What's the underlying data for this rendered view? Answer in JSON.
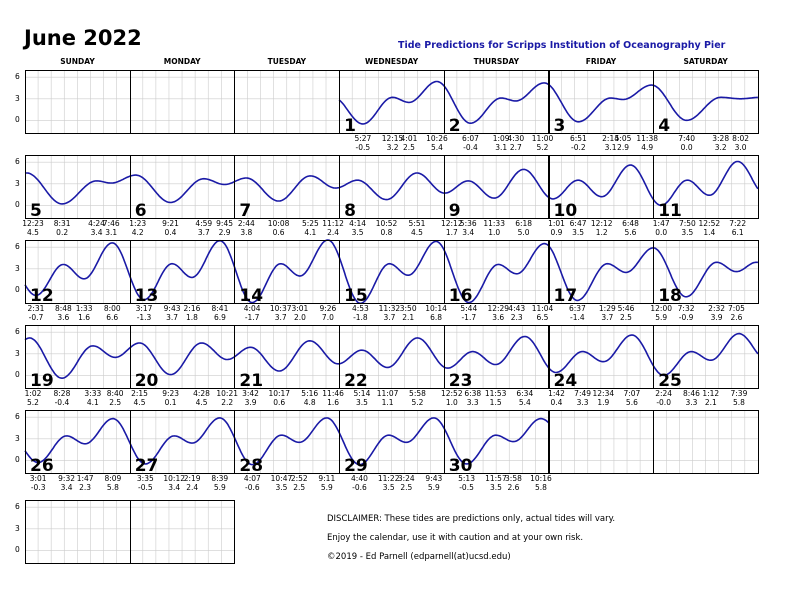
{
  "header": {
    "title": "June 2022",
    "subtitle": "Tide Predictions for Scripps Institution of Oceanography Pier"
  },
  "weekdays": [
    "SUNDAY",
    "MONDAY",
    "TUESDAY",
    "WEDNESDAY",
    "THURSDAY",
    "FRIDAY",
    "SATURDAY"
  ],
  "y_ticks": [
    "6",
    "3",
    "0"
  ],
  "curve_color": "#1a1aa6",
  "weeks": [
    [
      null,
      null,
      null,
      {
        "date": "1",
        "tides": [
          [
            "5:27",
            "-0.5"
          ],
          [
            "12:15",
            "3.2"
          ],
          [
            "4:01",
            "2.5"
          ],
          [
            "10:26",
            "5.4"
          ]
        ]
      },
      {
        "date": "2",
        "tides": [
          [
            "6:07",
            "-0.4"
          ],
          [
            "1:09",
            "3.1"
          ],
          [
            "4:30",
            "2.7"
          ],
          [
            "11:00",
            "5.2"
          ]
        ]
      },
      {
        "date": "3",
        "tides": [
          [
            "6:51",
            "-0.2"
          ],
          [
            "2:14",
            "3.1"
          ],
          [
            "5:05",
            "2.9"
          ],
          [
            "11:38",
            "4.9"
          ]
        ]
      },
      {
        "date": "4",
        "tides": [
          [
            "7:40",
            "0.0"
          ],
          [
            "3:28",
            "3.2"
          ],
          [
            "8:02",
            "3.0"
          ]
        ]
      }
    ],
    [
      {
        "date": "5",
        "tides": [
          [
            "12:23",
            "4.5"
          ],
          [
            "8:31",
            "0.2"
          ],
          [
            "4:24",
            "3.4"
          ],
          [
            "7:46",
            "3.1"
          ]
        ]
      },
      {
        "date": "6",
        "tides": [
          [
            "1:23",
            "4.2"
          ],
          [
            "9:21",
            "0.4"
          ],
          [
            "4:59",
            "3.7"
          ],
          [
            "9:45",
            "2.9"
          ]
        ]
      },
      {
        "date": "7",
        "tides": [
          [
            "2:44",
            "3.8"
          ],
          [
            "10:08",
            "0.6"
          ],
          [
            "5:25",
            "4.1"
          ],
          [
            "11:12",
            "2.4"
          ]
        ]
      },
      {
        "date": "8",
        "tides": [
          [
            "4:14",
            "3.5"
          ],
          [
            "10:52",
            "0.8"
          ],
          [
            "5:51",
            "4.5"
          ]
        ]
      },
      {
        "date": "9",
        "tides": [
          [
            "12:12",
            "1.7"
          ],
          [
            "5:36",
            "3.4"
          ],
          [
            "11:33",
            "1.0"
          ],
          [
            "6:18",
            "5.0"
          ]
        ]
      },
      {
        "date": "10",
        "tides": [
          [
            "1:01",
            "0.9"
          ],
          [
            "6:47",
            "3.5"
          ],
          [
            "12:12",
            "1.2"
          ],
          [
            "6:48",
            "5.6"
          ]
        ]
      },
      {
        "date": "11",
        "tides": [
          [
            "1:47",
            "0.0"
          ],
          [
            "7:50",
            "3.5"
          ],
          [
            "12:52",
            "1.4"
          ],
          [
            "7:22",
            "6.1"
          ]
        ]
      }
    ],
    [
      {
        "date": "12",
        "tides": [
          [
            "2:31",
            "-0.7"
          ],
          [
            "8:48",
            "3.6"
          ],
          [
            "1:33",
            "1.6"
          ],
          [
            "8:00",
            "6.6"
          ]
        ]
      },
      {
        "date": "13",
        "tides": [
          [
            "3:17",
            "-1.3"
          ],
          [
            "9:43",
            "3.7"
          ],
          [
            "2:16",
            "1.8"
          ],
          [
            "8:41",
            "6.9"
          ]
        ]
      },
      {
        "date": "14",
        "tides": [
          [
            "4:04",
            "-1.7"
          ],
          [
            "10:37",
            "3.7"
          ],
          [
            "3:01",
            "2.0"
          ],
          [
            "9:26",
            "7.0"
          ]
        ]
      },
      {
        "date": "15",
        "tides": [
          [
            "4:53",
            "-1.8"
          ],
          [
            "11:32",
            "3.7"
          ],
          [
            "3:50",
            "2.1"
          ],
          [
            "10:14",
            "6.8"
          ]
        ]
      },
      {
        "date": "16",
        "tides": [
          [
            "5:44",
            "-1.7"
          ],
          [
            "12:29",
            "3.6"
          ],
          [
            "4:43",
            "2.3"
          ],
          [
            "11:04",
            "6.5"
          ]
        ]
      },
      {
        "date": "17",
        "tides": [
          [
            "6:37",
            "-1.4"
          ],
          [
            "1:29",
            "3.7"
          ],
          [
            "5:46",
            "2.5"
          ]
        ]
      },
      {
        "date": "18",
        "tides": [
          [
            "12:00",
            "5.9"
          ],
          [
            "7:32",
            "-0.9"
          ],
          [
            "2:32",
            "3.9"
          ],
          [
            "7:05",
            "2.6"
          ]
        ]
      }
    ],
    [
      {
        "date": "19",
        "tides": [
          [
            "1:02",
            "5.2"
          ],
          [
            "8:28",
            "-0.4"
          ],
          [
            "3:33",
            "4.1"
          ],
          [
            "8:40",
            "2.5"
          ]
        ]
      },
      {
        "date": "20",
        "tides": [
          [
            "2:15",
            "4.5"
          ],
          [
            "9:23",
            "0.1"
          ],
          [
            "4:28",
            "4.5"
          ],
          [
            "10:21",
            "2.2"
          ]
        ]
      },
      {
        "date": "21",
        "tides": [
          [
            "3:42",
            "3.9"
          ],
          [
            "10:17",
            "0.6"
          ],
          [
            "5:16",
            "4.8"
          ],
          [
            "11:46",
            "1.6"
          ]
        ]
      },
      {
        "date": "22",
        "tides": [
          [
            "5:14",
            "3.5"
          ],
          [
            "11:07",
            "1.1"
          ],
          [
            "5:58",
            "5.2"
          ]
        ]
      },
      {
        "date": "23",
        "tides": [
          [
            "12:52",
            "1.0"
          ],
          [
            "6:38",
            "3.3"
          ],
          [
            "11:53",
            "1.5"
          ],
          [
            "6:34",
            "5.4"
          ]
        ]
      },
      {
        "date": "24",
        "tides": [
          [
            "1:42",
            "0.4"
          ],
          [
            "7:49",
            "3.3"
          ],
          [
            "12:34",
            "1.9"
          ],
          [
            "7:07",
            "5.6"
          ]
        ]
      },
      {
        "date": "25",
        "tides": [
          [
            "2:24",
            "-0.0"
          ],
          [
            "8:46",
            "3.3"
          ],
          [
            "1:12",
            "2.1"
          ],
          [
            "7:39",
            "5.8"
          ]
        ]
      }
    ],
    [
      {
        "date": "26",
        "tides": [
          [
            "3:01",
            "-0.3"
          ],
          [
            "9:32",
            "3.4"
          ],
          [
            "1:47",
            "2.3"
          ],
          [
            "8:09",
            "5.8"
          ]
        ]
      },
      {
        "date": "27",
        "tides": [
          [
            "3:35",
            "-0.5"
          ],
          [
            "10:12",
            "3.4"
          ],
          [
            "2:19",
            "2.4"
          ],
          [
            "8:39",
            "5.9"
          ]
        ]
      },
      {
        "date": "28",
        "tides": [
          [
            "4:07",
            "-0.6"
          ],
          [
            "10:47",
            "3.5"
          ],
          [
            "2:52",
            "2.5"
          ],
          [
            "9:11",
            "5.9"
          ]
        ]
      },
      {
        "date": "29",
        "tides": [
          [
            "4:40",
            "-0.6"
          ],
          [
            "11:22",
            "3.5"
          ],
          [
            "3:24",
            "2.5"
          ],
          [
            "9:43",
            "5.9"
          ]
        ]
      },
      {
        "date": "30",
        "tides": [
          [
            "5:13",
            "-0.5"
          ],
          [
            "11:57",
            "3.5"
          ],
          [
            "3:58",
            "2.6"
          ],
          [
            "10:16",
            "5.8"
          ]
        ]
      },
      null,
      null
    ],
    [
      null,
      null
    ]
  ],
  "disclaimer": [
    "DISCLAIMER: These tides are predictions only, actual tides will vary.",
    "Enjoy the calendar, use it with caution and at your own risk.",
    "©2019 - Ed Parnell (edparnell(at)ucsd.edu)"
  ]
}
